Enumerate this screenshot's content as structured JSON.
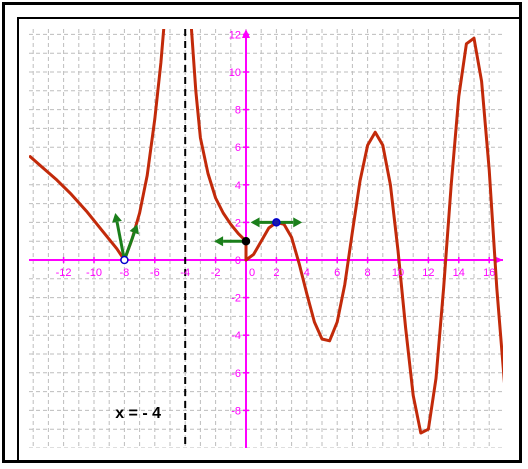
{
  "chart_data": {
    "type": "line",
    "title": "",
    "xlabel": "",
    "ylabel": "",
    "xlim": [
      -14.2,
      17.7
    ],
    "ylim": [
      -10.1,
      12.4
    ],
    "grid": true,
    "x_ticks": [
      "-12",
      "-10",
      "-8",
      "-6",
      "-4",
      "-2",
      "0",
      "2",
      "4",
      "6",
      "8",
      "10",
      "12",
      "14",
      "16"
    ],
    "y_ticks": [
      "-8",
      "-6",
      "-4",
      "-2",
      "0",
      "2",
      "4",
      "6",
      "8",
      "10",
      "12"
    ],
    "x_tick_values": [
      -12,
      -10,
      -8,
      -6,
      -4,
      -2,
      0,
      2,
      4,
      6,
      8,
      10,
      12,
      14,
      16
    ],
    "y_tick_values": [
      -8,
      -6,
      -4,
      -2,
      0,
      2,
      4,
      6,
      8,
      10,
      12
    ],
    "vertical_asymptote": {
      "x": -4,
      "label": "x = - 4"
    },
    "series": [
      {
        "color": "#c22a0a",
        "points": [
          [
            -14.2,
            5.5
          ],
          [
            -13.5,
            5.0
          ],
          [
            -12.5,
            4.3
          ],
          [
            -11.5,
            3.5
          ],
          [
            -10.5,
            2.6
          ],
          [
            -9.5,
            1.6
          ],
          [
            -8.5,
            0.6
          ],
          [
            -8.0,
            0.0
          ],
          [
            -7.5,
            1.1
          ],
          [
            -7.0,
            2.5
          ],
          [
            -6.5,
            4.5
          ],
          [
            -6.0,
            7.5
          ],
          [
            -5.6,
            10.5
          ],
          [
            -5.4,
            12.4
          ]
        ]
      },
      {
        "color": "#c22a0a",
        "points": [
          [
            -3.6,
            12.4
          ],
          [
            -3.3,
            9.0
          ],
          [
            -3.0,
            6.5
          ],
          [
            -2.5,
            4.6
          ],
          [
            -2.0,
            3.3
          ],
          [
            -1.5,
            2.5
          ],
          [
            -1.0,
            1.9
          ],
          [
            -0.5,
            1.4
          ],
          [
            0.0,
            1.0
          ],
          [
            0.0,
            0.0
          ],
          [
            0.5,
            0.3
          ],
          [
            1.0,
            1.0
          ],
          [
            1.5,
            1.7
          ],
          [
            2.0,
            2.0
          ],
          [
            2.5,
            1.9
          ],
          [
            3.0,
            1.2
          ],
          [
            3.5,
            -0.2
          ],
          [
            4.0,
            -1.8
          ],
          [
            4.5,
            -3.3
          ],
          [
            5.0,
            -4.2
          ],
          [
            5.5,
            -4.3
          ],
          [
            6.0,
            -3.3
          ],
          [
            6.5,
            -1.3
          ],
          [
            7.0,
            1.5
          ],
          [
            7.5,
            4.2
          ],
          [
            8.0,
            6.1
          ],
          [
            8.5,
            6.8
          ],
          [
            9.0,
            6.1
          ],
          [
            9.5,
            4.0
          ],
          [
            10.0,
            0.5
          ],
          [
            10.5,
            -3.6
          ],
          [
            11.0,
            -7.2
          ],
          [
            11.5,
            -9.2
          ],
          [
            12.0,
            -9.0
          ],
          [
            12.5,
            -6.3
          ],
          [
            13.0,
            -1.5
          ],
          [
            13.5,
            4.0
          ],
          [
            14.0,
            8.7
          ],
          [
            14.5,
            11.5
          ],
          [
            15.0,
            11.8
          ],
          [
            15.5,
            9.5
          ],
          [
            16.0,
            4.8
          ],
          [
            16.5,
            -1.5
          ],
          [
            17.0,
            -6.5
          ],
          [
            17.5,
            -10.1
          ]
        ]
      }
    ],
    "points": [
      {
        "x": -8,
        "y": 0,
        "fill": "#ffffff",
        "stroke": "#0000cc"
      },
      {
        "x": 0,
        "y": 1,
        "fill": "#000000",
        "stroke": "#000000"
      },
      {
        "x": 2,
        "y": 2,
        "fill": "#1a1aaa",
        "stroke": "#0000cc"
      }
    ],
    "arrows": [
      {
        "x": -8,
        "y": 0,
        "dx": -0.6,
        "dy": 2.5
      },
      {
        "x": -8,
        "y": 0,
        "dx": 0.85,
        "dy": 1.9
      },
      {
        "x": 0,
        "y": 1,
        "dx": -2.1,
        "dy": 0
      },
      {
        "x": 2,
        "y": 2,
        "dx": -1.7,
        "dy": 0
      },
      {
        "x": 2,
        "y": 2,
        "dx": 1.7,
        "dy": 0
      }
    ],
    "colors": {
      "axis": "#ff00ff",
      "grid": "#bdbdbd",
      "curve": "#c22a0a",
      "arrow": "#1b7f1b"
    }
  }
}
